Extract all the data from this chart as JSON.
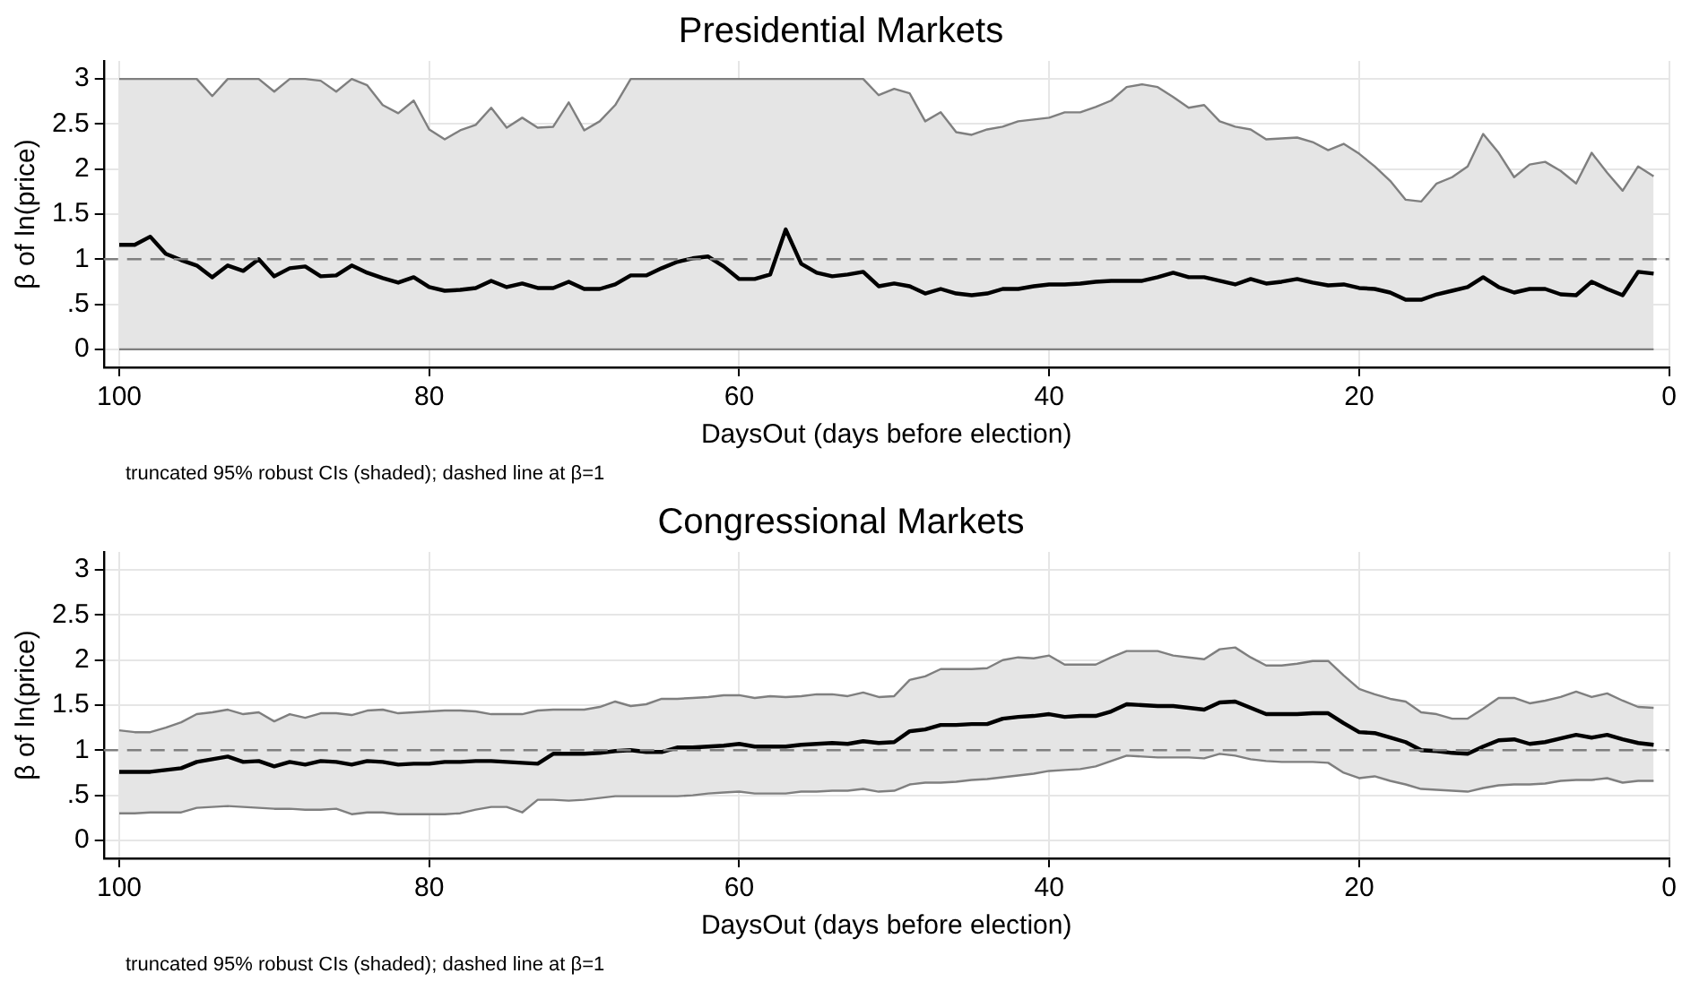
{
  "chart_data": [
    {
      "type": "line",
      "title": "Presidential Markets",
      "xlabel": "DaysOut (days before election)",
      "ylabel": "β of ln(price)",
      "annotations": [
        "truncated 95% robust CIs (shaded); dashed line at β=1"
      ],
      "x": [
        100,
        99,
        98,
        97,
        96,
        95,
        94,
        93,
        92,
        91,
        90,
        89,
        88,
        87,
        86,
        85,
        84,
        83,
        82,
        81,
        80,
        79,
        78,
        77,
        76,
        75,
        74,
        73,
        72,
        71,
        70,
        69,
        68,
        67,
        66,
        65,
        64,
        63,
        62,
        61,
        60,
        59,
        58,
        57,
        56,
        55,
        54,
        53,
        52,
        51,
        50,
        49,
        48,
        47,
        46,
        45,
        44,
        43,
        42,
        41,
        40,
        39,
        38,
        37,
        36,
        35,
        34,
        33,
        32,
        31,
        30,
        29,
        28,
        27,
        26,
        25,
        24,
        23,
        22,
        21,
        20,
        19,
        18,
        17,
        16,
        15,
        14,
        13,
        12,
        11,
        10,
        9,
        8,
        7,
        6,
        5,
        4,
        3,
        2,
        1
      ],
      "series": [
        {
          "color": "#000000",
          "values": [
            1.16,
            1.16,
            1.25,
            1.06,
            0.99,
            0.93,
            0.8,
            0.93,
            0.87,
            1.0,
            0.81,
            0.9,
            0.92,
            0.81,
            0.82,
            0.93,
            0.85,
            0.79,
            0.74,
            0.8,
            0.69,
            0.65,
            0.66,
            0.68,
            0.76,
            0.69,
            0.73,
            0.68,
            0.68,
            0.75,
            0.67,
            0.67,
            0.72,
            0.82,
            0.82,
            0.9,
            0.97,
            1.01,
            1.03,
            0.92,
            0.78,
            0.78,
            0.83,
            1.33,
            0.95,
            0.85,
            0.81,
            0.83,
            0.86,
            0.7,
            0.73,
            0.7,
            0.62,
            0.67,
            0.62,
            0.6,
            0.62,
            0.67,
            0.67,
            0.7,
            0.72,
            0.72,
            0.73,
            0.75,
            0.76,
            0.76,
            0.76,
            0.8,
            0.85,
            0.8,
            0.8,
            0.76,
            0.72,
            0.78,
            0.73,
            0.75,
            0.78,
            0.74,
            0.71,
            0.72,
            0.68,
            0.67,
            0.63,
            0.55,
            0.55,
            0.61,
            0.65,
            0.69,
            0.8,
            0.69,
            0.63,
            0.67,
            0.67,
            0.61,
            0.6,
            0.75,
            0.67,
            0.6,
            0.86,
            0.84
          ],
          "lower": [
            0,
            0,
            0,
            0,
            0,
            0,
            0,
            0,
            0,
            0,
            0,
            0,
            0,
            0,
            0,
            0,
            0,
            0,
            0,
            0,
            0,
            0,
            0,
            0,
            0,
            0,
            0,
            0,
            0,
            0,
            0,
            0,
            0,
            0,
            0,
            0,
            0,
            0,
            0,
            0,
            0,
            0,
            0,
            0,
            0,
            0,
            0,
            0,
            0,
            0,
            0,
            0,
            0,
            0,
            0,
            0,
            0,
            0,
            0,
            0,
            0,
            0,
            0,
            0,
            0,
            0,
            0,
            0,
            0,
            0,
            0,
            0,
            0,
            0,
            0,
            0,
            0,
            0,
            0,
            0,
            0,
            0,
            0,
            0,
            0,
            0,
            0,
            0,
            0,
            0,
            0,
            0,
            0,
            0,
            0,
            0,
            0,
            0,
            0,
            0
          ],
          "upper": [
            3,
            3,
            3,
            3,
            3,
            3,
            2.81,
            3,
            3,
            3,
            2.86,
            3,
            3,
            2.98,
            2.86,
            3,
            2.93,
            2.71,
            2.62,
            2.76,
            2.44,
            2.33,
            2.43,
            2.49,
            2.68,
            2.46,
            2.57,
            2.46,
            2.47,
            2.74,
            2.43,
            2.53,
            2.71,
            3,
            3,
            3,
            3,
            3,
            3,
            3,
            3,
            3,
            3,
            3,
            3,
            3,
            3,
            3,
            3,
            2.82,
            2.89,
            2.84,
            2.53,
            2.63,
            2.41,
            2.38,
            2.44,
            2.47,
            2.53,
            2.55,
            2.57,
            2.63,
            2.63,
            2.69,
            2.76,
            2.91,
            2.94,
            2.91,
            2.8,
            2.68,
            2.71,
            2.53,
            2.47,
            2.44,
            2.33,
            2.34,
            2.35,
            2.3,
            2.21,
            2.28,
            2.17,
            2.03,
            1.87,
            1.66,
            1.64,
            1.84,
            1.91,
            2.03,
            2.39,
            2.18,
            1.91,
            2.05,
            2.08,
            1.98,
            1.84,
            2.18,
            1.96,
            1.76,
            2.03,
            1.92
          ]
        },
        {
          "color": "#7f7f7f",
          "values": [
            0,
            0,
            0,
            0,
            0,
            0,
            0,
            0,
            0,
            0,
            0,
            0,
            0,
            0,
            0,
            0,
            0,
            0,
            0,
            0,
            0,
            0,
            0,
            0,
            0,
            0,
            0,
            0,
            0,
            0,
            0,
            0,
            0,
            0,
            0,
            0,
            0,
            0,
            0,
            0,
            0,
            0,
            0,
            0,
            0,
            0,
            0,
            0,
            0,
            0,
            0,
            0,
            0,
            0,
            0,
            0,
            0,
            0,
            0,
            0,
            0,
            0,
            0,
            0,
            0,
            0,
            0,
            0,
            0,
            0,
            0,
            0,
            0,
            0,
            0,
            0,
            0,
            0,
            0,
            0,
            0,
            0,
            0,
            0,
            0,
            0,
            0,
            0,
            0,
            0,
            0,
            0,
            0,
            0,
            0,
            0,
            0,
            0,
            0,
            0
          ]
        },
        {
          "color": "#7f7f7f",
          "values": [
            3,
            3,
            3,
            3,
            3,
            3,
            2.81,
            3,
            3,
            3,
            2.86,
            3,
            3,
            2.98,
            2.86,
            3,
            2.93,
            2.71,
            2.62,
            2.76,
            2.44,
            2.33,
            2.43,
            2.49,
            2.68,
            2.46,
            2.57,
            2.46,
            2.47,
            2.74,
            2.43,
            2.53,
            2.71,
            3,
            3,
            3,
            3,
            3,
            3,
            3,
            3,
            3,
            3,
            3,
            3,
            3,
            3,
            3,
            3,
            2.82,
            2.89,
            2.84,
            2.53,
            2.63,
            2.41,
            2.38,
            2.44,
            2.47,
            2.53,
            2.55,
            2.57,
            2.63,
            2.63,
            2.69,
            2.76,
            2.91,
            2.94,
            2.91,
            2.8,
            2.68,
            2.71,
            2.53,
            2.47,
            2.44,
            2.33,
            2.34,
            2.35,
            2.3,
            2.21,
            2.28,
            2.17,
            2.03,
            1.87,
            1.66,
            1.64,
            1.84,
            1.91,
            2.03,
            2.39,
            2.18,
            1.91,
            2.05,
            2.08,
            1.98,
            1.84,
            2.18,
            1.96,
            1.76,
            2.03,
            1.92
          ]
        }
      ],
      "xlim": [
        101,
        0
      ],
      "xticks": [
        100,
        80,
        60,
        40,
        20,
        0
      ],
      "ylim": [
        -0.2,
        3.2
      ],
      "yticks": [
        0,
        {
          "value": 0.5,
          "label": ".5"
        },
        1,
        1.5,
        2,
        2.5,
        3
      ],
      "ref_lines": [
        {
          "axis": "y",
          "value": 1,
          "color": "#7f7f7f",
          "line_style": "dashed"
        }
      ],
      "grid": true
    },
    {
      "type": "line",
      "title": "Congressional Markets",
      "xlabel": "DaysOut (days before election)",
      "ylabel": "β of ln(price)",
      "annotations": [
        "truncated 95% robust CIs (shaded); dashed line at β=1"
      ],
      "x": [
        100,
        99,
        98,
        97,
        96,
        95,
        94,
        93,
        92,
        91,
        90,
        89,
        88,
        87,
        86,
        85,
        84,
        83,
        82,
        81,
        80,
        79,
        78,
        77,
        76,
        75,
        74,
        73,
        72,
        71,
        70,
        69,
        68,
        67,
        66,
        65,
        64,
        63,
        62,
        61,
        60,
        59,
        58,
        57,
        56,
        55,
        54,
        53,
        52,
        51,
        50,
        49,
        48,
        47,
        46,
        45,
        44,
        43,
        42,
        41,
        40,
        39,
        38,
        37,
        36,
        35,
        34,
        33,
        32,
        31,
        30,
        29,
        28,
        27,
        26,
        25,
        24,
        23,
        22,
        21,
        20,
        19,
        18,
        17,
        16,
        15,
        14,
        13,
        12,
        11,
        10,
        9,
        8,
        7,
        6,
        5,
        4,
        3,
        2,
        1
      ],
      "series": [
        {
          "color": "#000000",
          "values": [
            0.76,
            0.76,
            0.76,
            0.78,
            0.8,
            0.87,
            0.9,
            0.93,
            0.87,
            0.88,
            0.82,
            0.87,
            0.84,
            0.88,
            0.87,
            0.84,
            0.88,
            0.87,
            0.84,
            0.85,
            0.85,
            0.87,
            0.87,
            0.88,
            0.88,
            0.87,
            0.86,
            0.85,
            0.96,
            0.96,
            0.96,
            0.97,
            0.99,
            1.0,
            0.98,
            0.98,
            1.03,
            1.03,
            1.04,
            1.05,
            1.07,
            1.04,
            1.04,
            1.04,
            1.06,
            1.07,
            1.08,
            1.07,
            1.1,
            1.08,
            1.09,
            1.21,
            1.23,
            1.28,
            1.28,
            1.29,
            1.29,
            1.35,
            1.37,
            1.38,
            1.4,
            1.37,
            1.38,
            1.38,
            1.43,
            1.51,
            1.5,
            1.49,
            1.49,
            1.47,
            1.45,
            1.53,
            1.54,
            1.47,
            1.4,
            1.4,
            1.4,
            1.41,
            1.41,
            1.3,
            1.2,
            1.19,
            1.14,
            1.09,
            1.0,
            0.99,
            0.97,
            0.96,
            1.04,
            1.11,
            1.12,
            1.07,
            1.09,
            1.13,
            1.17,
            1.14,
            1.17,
            1.12,
            1.08,
            1.06
          ],
          "lower": [
            0.3,
            0.3,
            0.31,
            0.31,
            0.31,
            0.36,
            0.37,
            0.38,
            0.37,
            0.36,
            0.35,
            0.35,
            0.34,
            0.34,
            0.35,
            0.29,
            0.31,
            0.31,
            0.29,
            0.29,
            0.29,
            0.29,
            0.3,
            0.34,
            0.37,
            0.37,
            0.31,
            0.45,
            0.45,
            0.44,
            0.45,
            0.47,
            0.49,
            0.49,
            0.49,
            0.49,
            0.49,
            0.5,
            0.52,
            0.53,
            0.54,
            0.52,
            0.52,
            0.52,
            0.54,
            0.54,
            0.55,
            0.55,
            0.57,
            0.54,
            0.55,
            0.62,
            0.64,
            0.64,
            0.65,
            0.67,
            0.68,
            0.7,
            0.72,
            0.74,
            0.77,
            0.78,
            0.79,
            0.82,
            0.88,
            0.94,
            0.93,
            0.92,
            0.92,
            0.92,
            0.91,
            0.96,
            0.94,
            0.9,
            0.88,
            0.87,
            0.87,
            0.87,
            0.86,
            0.75,
            0.69,
            0.71,
            0.66,
            0.62,
            0.57,
            0.56,
            0.55,
            0.54,
            0.58,
            0.61,
            0.62,
            0.62,
            0.63,
            0.66,
            0.67,
            0.67,
            0.69,
            0.64,
            0.66,
            0.66
          ],
          "upper": [
            1.22,
            1.2,
            1.2,
            1.25,
            1.31,
            1.4,
            1.42,
            1.45,
            1.4,
            1.42,
            1.32,
            1.4,
            1.36,
            1.41,
            1.41,
            1.39,
            1.44,
            1.45,
            1.41,
            1.42,
            1.43,
            1.44,
            1.44,
            1.43,
            1.4,
            1.4,
            1.4,
            1.44,
            1.45,
            1.45,
            1.45,
            1.48,
            1.54,
            1.49,
            1.51,
            1.57,
            1.57,
            1.58,
            1.59,
            1.61,
            1.61,
            1.58,
            1.6,
            1.59,
            1.6,
            1.62,
            1.62,
            1.6,
            1.64,
            1.59,
            1.6,
            1.78,
            1.82,
            1.9,
            1.9,
            1.9,
            1.91,
            2.0,
            2.03,
            2.02,
            2.05,
            1.95,
            1.95,
            1.95,
            2.03,
            2.1,
            2.1,
            2.1,
            2.05,
            2.03,
            2.01,
            2.12,
            2.14,
            2.03,
            1.94,
            1.94,
            1.96,
            1.99,
            1.99,
            1.83,
            1.68,
            1.62,
            1.57,
            1.54,
            1.42,
            1.4,
            1.35,
            1.35,
            1.46,
            1.58,
            1.58,
            1.52,
            1.55,
            1.59,
            1.65,
            1.59,
            1.63,
            1.55,
            1.48,
            1.47
          ]
        },
        {
          "color": "#7f7f7f",
          "values": [
            0.3,
            0.3,
            0.31,
            0.31,
            0.31,
            0.36,
            0.37,
            0.38,
            0.37,
            0.36,
            0.35,
            0.35,
            0.34,
            0.34,
            0.35,
            0.29,
            0.31,
            0.31,
            0.29,
            0.29,
            0.29,
            0.29,
            0.3,
            0.34,
            0.37,
            0.37,
            0.31,
            0.45,
            0.45,
            0.44,
            0.45,
            0.47,
            0.49,
            0.49,
            0.49,
            0.49,
            0.49,
            0.5,
            0.52,
            0.53,
            0.54,
            0.52,
            0.52,
            0.52,
            0.54,
            0.54,
            0.55,
            0.55,
            0.57,
            0.54,
            0.55,
            0.62,
            0.64,
            0.64,
            0.65,
            0.67,
            0.68,
            0.7,
            0.72,
            0.74,
            0.77,
            0.78,
            0.79,
            0.82,
            0.88,
            0.94,
            0.93,
            0.92,
            0.92,
            0.92,
            0.91,
            0.96,
            0.94,
            0.9,
            0.88,
            0.87,
            0.87,
            0.87,
            0.86,
            0.75,
            0.69,
            0.71,
            0.66,
            0.62,
            0.57,
            0.56,
            0.55,
            0.54,
            0.58,
            0.61,
            0.62,
            0.62,
            0.63,
            0.66,
            0.67,
            0.67,
            0.69,
            0.64,
            0.66,
            0.66
          ]
        },
        {
          "color": "#7f7f7f",
          "values": [
            1.22,
            1.2,
            1.2,
            1.25,
            1.31,
            1.4,
            1.42,
            1.45,
            1.4,
            1.42,
            1.32,
            1.4,
            1.36,
            1.41,
            1.41,
            1.39,
            1.44,
            1.45,
            1.41,
            1.42,
            1.43,
            1.44,
            1.44,
            1.43,
            1.4,
            1.4,
            1.4,
            1.44,
            1.45,
            1.45,
            1.45,
            1.48,
            1.54,
            1.49,
            1.51,
            1.57,
            1.57,
            1.58,
            1.59,
            1.61,
            1.61,
            1.58,
            1.6,
            1.59,
            1.6,
            1.62,
            1.62,
            1.6,
            1.64,
            1.59,
            1.6,
            1.78,
            1.82,
            1.9,
            1.9,
            1.9,
            1.91,
            2.0,
            2.03,
            2.02,
            2.05,
            1.95,
            1.95,
            1.95,
            2.03,
            2.1,
            2.1,
            2.1,
            2.05,
            2.03,
            2.01,
            2.12,
            2.14,
            2.03,
            1.94,
            1.94,
            1.96,
            1.99,
            1.99,
            1.83,
            1.68,
            1.62,
            1.57,
            1.54,
            1.42,
            1.4,
            1.35,
            1.35,
            1.46,
            1.58,
            1.58,
            1.52,
            1.55,
            1.59,
            1.65,
            1.59,
            1.63,
            1.55,
            1.48,
            1.47
          ]
        }
      ],
      "xlim": [
        101,
        0
      ],
      "xticks": [
        100,
        80,
        60,
        40,
        20,
        0
      ],
      "ylim": [
        -0.2,
        3.2
      ],
      "yticks": [
        0,
        {
          "value": 0.5,
          "label": ".5"
        },
        1,
        1.5,
        2,
        2.5,
        3
      ],
      "ref_lines": [
        {
          "axis": "y",
          "value": 1,
          "color": "#7f7f7f",
          "line_style": "dashed"
        }
      ],
      "grid": true
    }
  ]
}
